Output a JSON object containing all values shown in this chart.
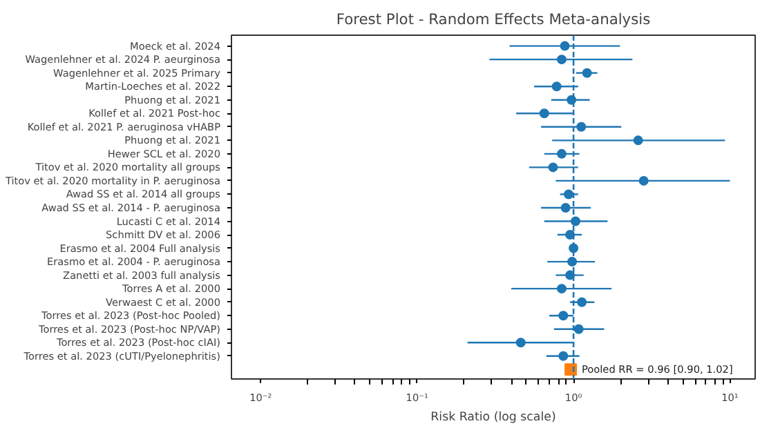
{
  "chart_data": {
    "type": "scatter",
    "orientation": "horizontal",
    "title": "Forest Plot - Random Effects Meta-analysis",
    "xlabel": "Risk Ratio (log scale)",
    "log": "x",
    "grid": false,
    "categories": [
      "Moeck et al. 2024",
      "Wagenlehner et al. 2024 P. aeurginosa",
      "Wagenlehner et al. 2025 Primary",
      "Martin-Loeches et al. 2022",
      "Phuong et al. 2021",
      "Kollef et al. 2021 Post-hoc",
      "Kollef et al. 2021 P. aeruginosa vHABP",
      "Phuong et al. 2021",
      "Hewer SCL et al. 2020",
      "Titov et al. 2020 mortality all groups",
      "Titov et al. 2020 mortality in P. aeruginosa",
      "Awad SS et al. 2014 all groups",
      "Awad SS et al. 2014 - P. aeruginosa",
      "Lucasti C et al. 2014",
      "Schmitt DV et al. 2006",
      "Erasmo et al. 2004 Full analysis",
      "Erasmo et al. 2004 - P. aeruginosa",
      "Zanetti et al. 2003 full analysis",
      "Torres A et al. 2000",
      "Verwaest C et al. 2000",
      "Torres et al. 2023 (Post-hoc Pooled)",
      "Torres et al. 2023 (Post-hoc NP/VAP)",
      "Torres et al. 2023 (Post-hoc cIAI)",
      "Torres et al. 2023 (cUTI/Pyelonephritis)",
      null
    ],
    "series": [
      {
        "marker": "circle",
        "color": "#1f77b4",
        "values": [
          0.88,
          0.84,
          1.22,
          0.78,
          0.97,
          0.65,
          1.12,
          2.59,
          0.84,
          0.74,
          2.81,
          0.93,
          0.89,
          1.03,
          0.95,
          1.0,
          0.98,
          0.95,
          0.84,
          1.13,
          0.86,
          1.08,
          0.46,
          0.86,
          null
        ],
        "errors": [
          [
            0.39,
            1.98
          ],
          [
            0.29,
            2.38
          ],
          [
            1.04,
            1.42
          ],
          [
            0.56,
            1.07
          ],
          [
            0.72,
            1.27
          ],
          [
            0.43,
            1.0
          ],
          [
            0.62,
            2.02
          ],
          [
            0.73,
            9.3
          ],
          [
            0.65,
            1.09
          ],
          [
            0.52,
            1.07
          ],
          [
            0.77,
            10.0
          ],
          [
            0.82,
            1.07
          ],
          [
            0.62,
            1.29
          ],
          [
            0.65,
            1.65
          ],
          [
            0.79,
            1.13
          ],
          [
            0.98,
            1.02
          ],
          [
            0.68,
            1.37
          ],
          [
            0.77,
            1.16
          ],
          [
            0.4,
            1.75
          ],
          [
            0.95,
            1.36
          ],
          [
            0.7,
            1.0
          ],
          [
            0.75,
            1.57
          ],
          [
            0.21,
            1.0
          ],
          [
            0.67,
            1.09
          ],
          null
        ]
      },
      {
        "marker": "square",
        "name": "Pooled RR = 0.96 [0.90, 1.02]",
        "color": "#ff7f0e",
        "values": [
          null,
          null,
          null,
          null,
          null,
          null,
          null,
          null,
          null,
          null,
          null,
          null,
          null,
          null,
          null,
          null,
          null,
          null,
          null,
          null,
          null,
          null,
          null,
          null,
          0.96
        ],
        "errors": [
          null,
          null,
          null,
          null,
          null,
          null,
          null,
          null,
          null,
          null,
          null,
          null,
          null,
          null,
          null,
          null,
          null,
          null,
          null,
          null,
          null,
          null,
          null,
          null,
          [
            0.9,
            1.02
          ]
        ]
      }
    ],
    "xlim": [
      0.0065,
      14.5
    ],
    "xticks": [
      {
        "value": 0.01,
        "label": "10⁻²"
      },
      {
        "value": 0.1,
        "label": "10⁻¹"
      },
      {
        "value": 1,
        "label": "10⁰"
      },
      {
        "value": 10,
        "label": "10¹"
      }
    ],
    "ref_lines": [
      {
        "axis": "x",
        "value": 1,
        "label": null,
        "color": "#1f77b4",
        "line_style": "dashed"
      }
    ]
  }
}
